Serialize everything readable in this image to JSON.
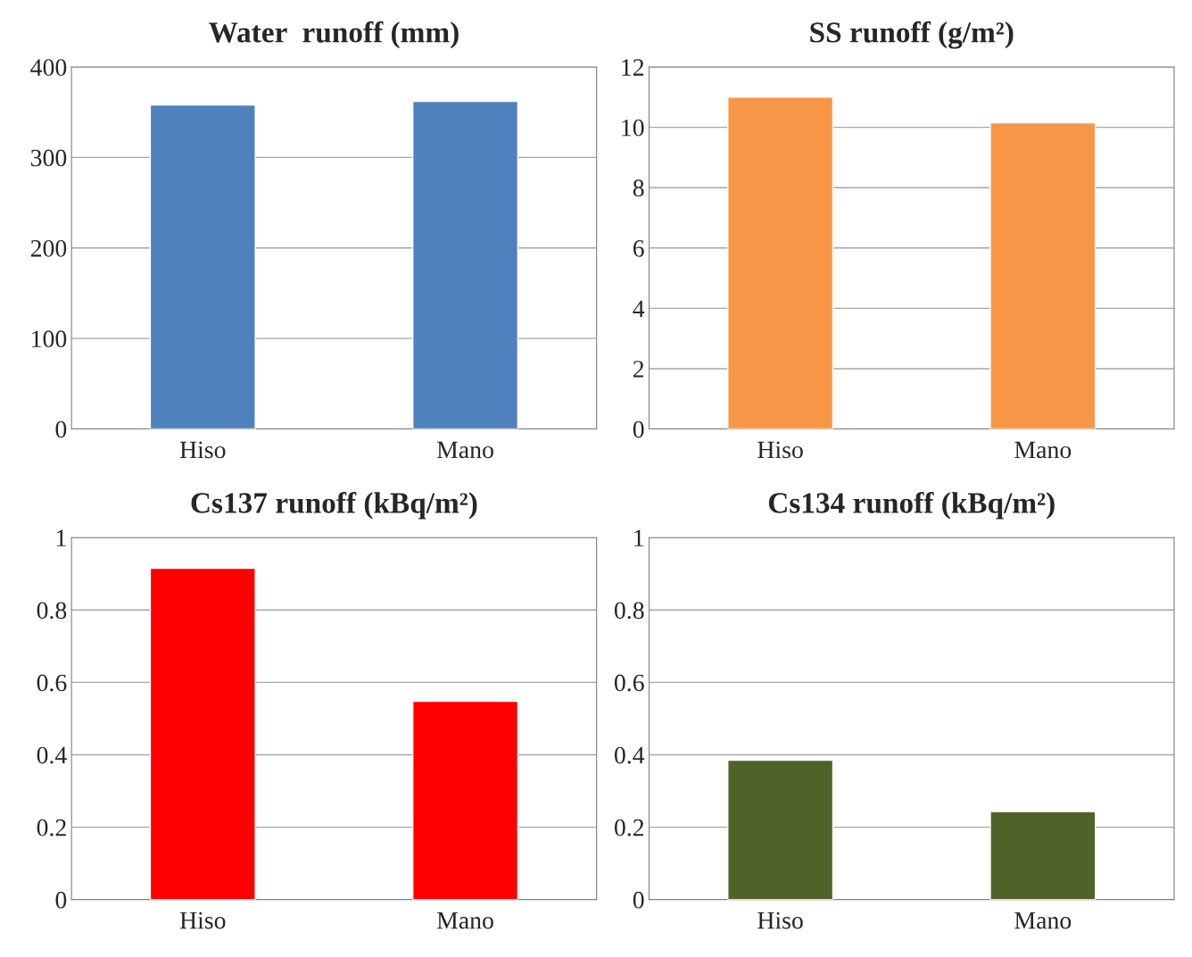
{
  "chart_data": [
    {
      "type": "bar",
      "title": "Water  runoff (mm)",
      "categories": [
        "Hiso",
        "Mano"
      ],
      "values": [
        358,
        362
      ],
      "color": "#4f81bd",
      "ylim": [
        0,
        400
      ],
      "yticks": [
        0,
        100,
        200,
        300,
        400
      ],
      "grid": "y"
    },
    {
      "type": "bar",
      "title": "SS runoff (g/m²)",
      "categories": [
        "Hiso",
        "Mano"
      ],
      "values": [
        11.0,
        10.15
      ],
      "color": "#f79646",
      "ylim": [
        0,
        12
      ],
      "yticks": [
        0,
        2,
        4,
        6,
        8,
        10,
        12
      ],
      "grid": "y"
    },
    {
      "type": "bar",
      "title": "Cs137 runoff (kBq/m²)",
      "categories": [
        "Hiso",
        "Mano"
      ],
      "values": [
        0.915,
        0.548
      ],
      "color": "#ff0000",
      "ylim": [
        0,
        1
      ],
      "yticks": [
        0,
        0.2,
        0.4,
        0.6,
        0.8,
        1
      ],
      "grid": "y"
    },
    {
      "type": "bar",
      "title": "Cs134 runoff (kBq/m²)",
      "categories": [
        "Hiso",
        "Mano"
      ],
      "values": [
        0.385,
        0.243
      ],
      "color": "#4f6228",
      "ylim": [
        0,
        1
      ],
      "yticks": [
        0,
        0.2,
        0.4,
        0.6,
        0.8,
        1
      ],
      "grid": "y"
    }
  ]
}
